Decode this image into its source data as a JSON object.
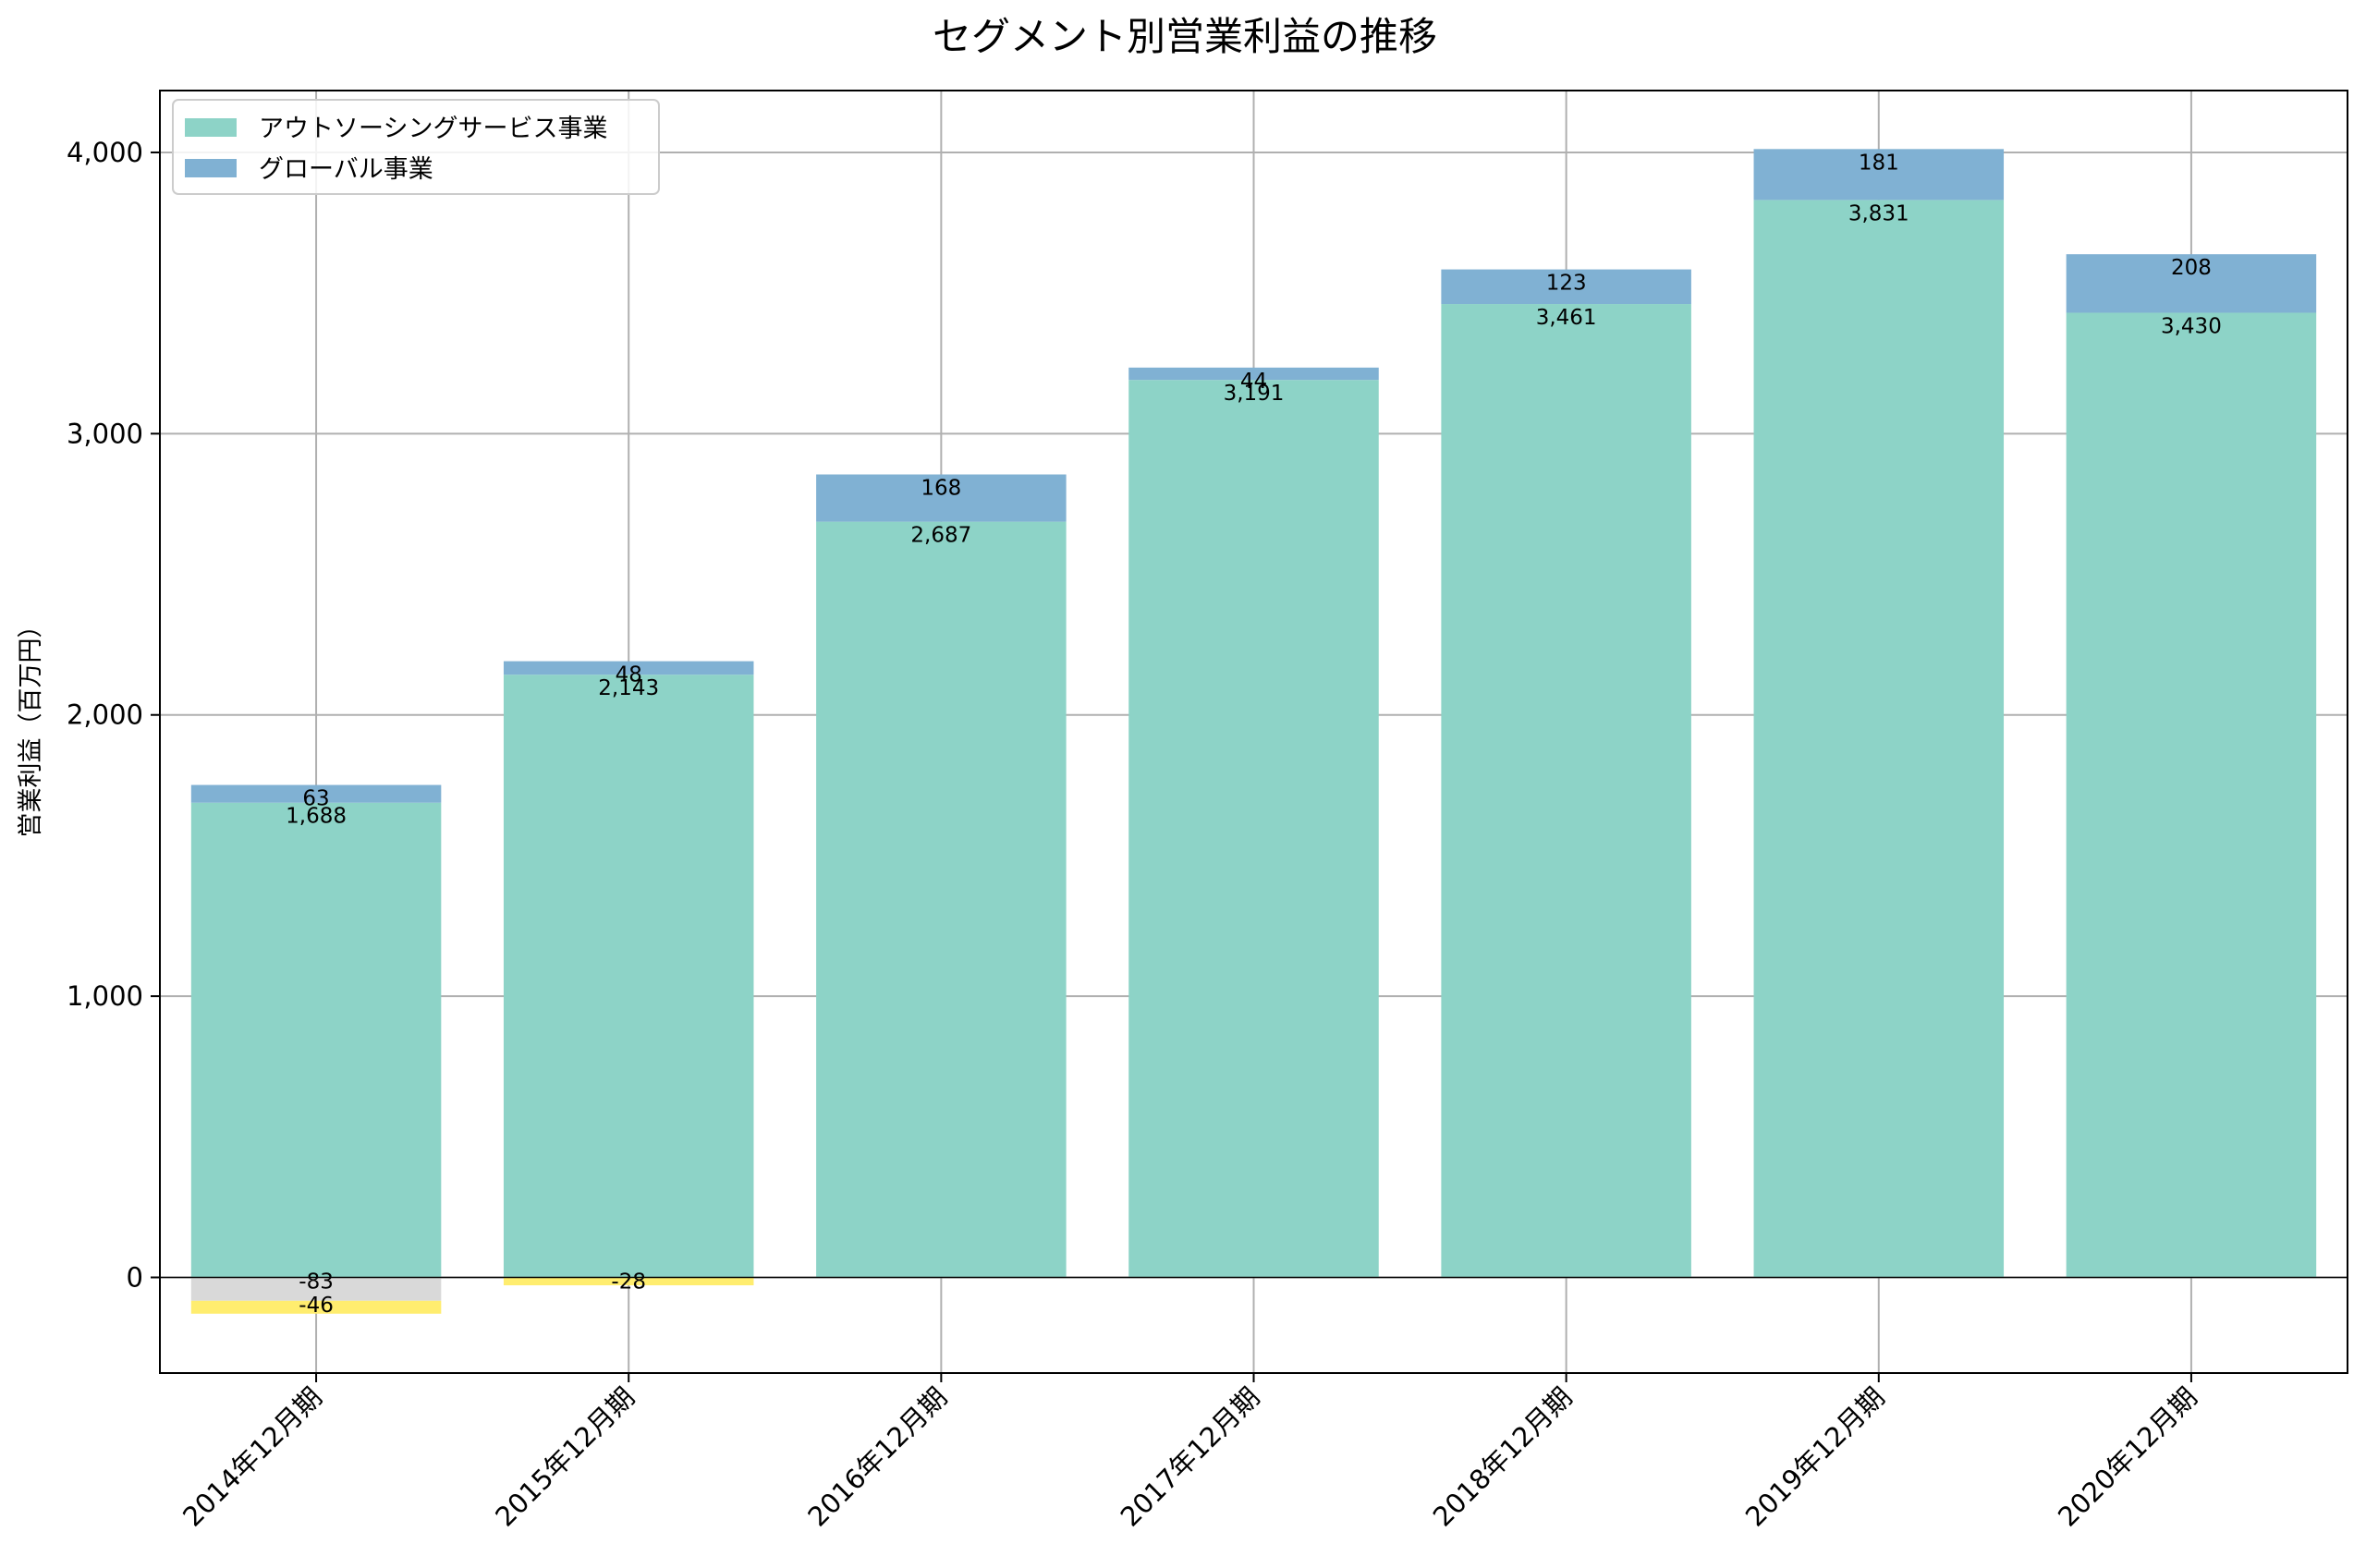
{
  "chart_data": {
    "type": "bar",
    "stacked": true,
    "title": "セグメント別営業利益の推移",
    "xlabel": "",
    "ylabel": "営業利益（百万円）",
    "ylim": [
      -340,
      4220
    ],
    "yticks": [
      0,
      1000,
      2000,
      3000,
      4000
    ],
    "ytick_labels": [
      "0",
      "1,000",
      "2,000",
      "3,000",
      "4,000"
    ],
    "grid": true,
    "legend_position": "top-left",
    "categories": [
      "2014年12月期",
      "2015年12月期",
      "2016年12月期",
      "2017年12月期",
      "2018年12月期",
      "2019年12月期",
      "2020年12月期"
    ],
    "series": [
      {
        "name": "アウトソーシングサービス事業",
        "color": "#8dd3c7",
        "in_legend": true,
        "values": [
          1688,
          2143,
          2687,
          3191,
          3461,
          3831,
          3430
        ]
      },
      {
        "name": "グローバル事業",
        "color": "#80b1d3",
        "in_legend": true,
        "values": [
          63,
          48,
          168,
          44,
          123,
          181,
          208
        ]
      },
      {
        "name": "",
        "color": "#d9d9d9",
        "in_legend": false,
        "values": [
          -83,
          null,
          null,
          null,
          null,
          null,
          null
        ]
      },
      {
        "name": "",
        "color": "#ffed6f",
        "in_legend": false,
        "values": [
          -46,
          -28,
          null,
          null,
          null,
          null,
          null
        ]
      }
    ]
  }
}
